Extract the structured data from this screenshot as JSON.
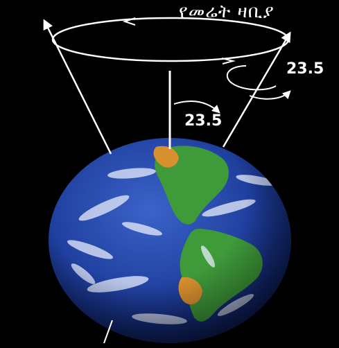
{
  "diagram": {
    "title": "የመሬት ዛቢያ",
    "angle_label_precession": "23.5",
    "angle_label_tilt": "23.5"
  },
  "colors": {
    "background": "#000000",
    "ocean": "#1f3f9e",
    "land": "#3f9a3a",
    "desert": "#d9902e",
    "lines": "#ffffff"
  }
}
